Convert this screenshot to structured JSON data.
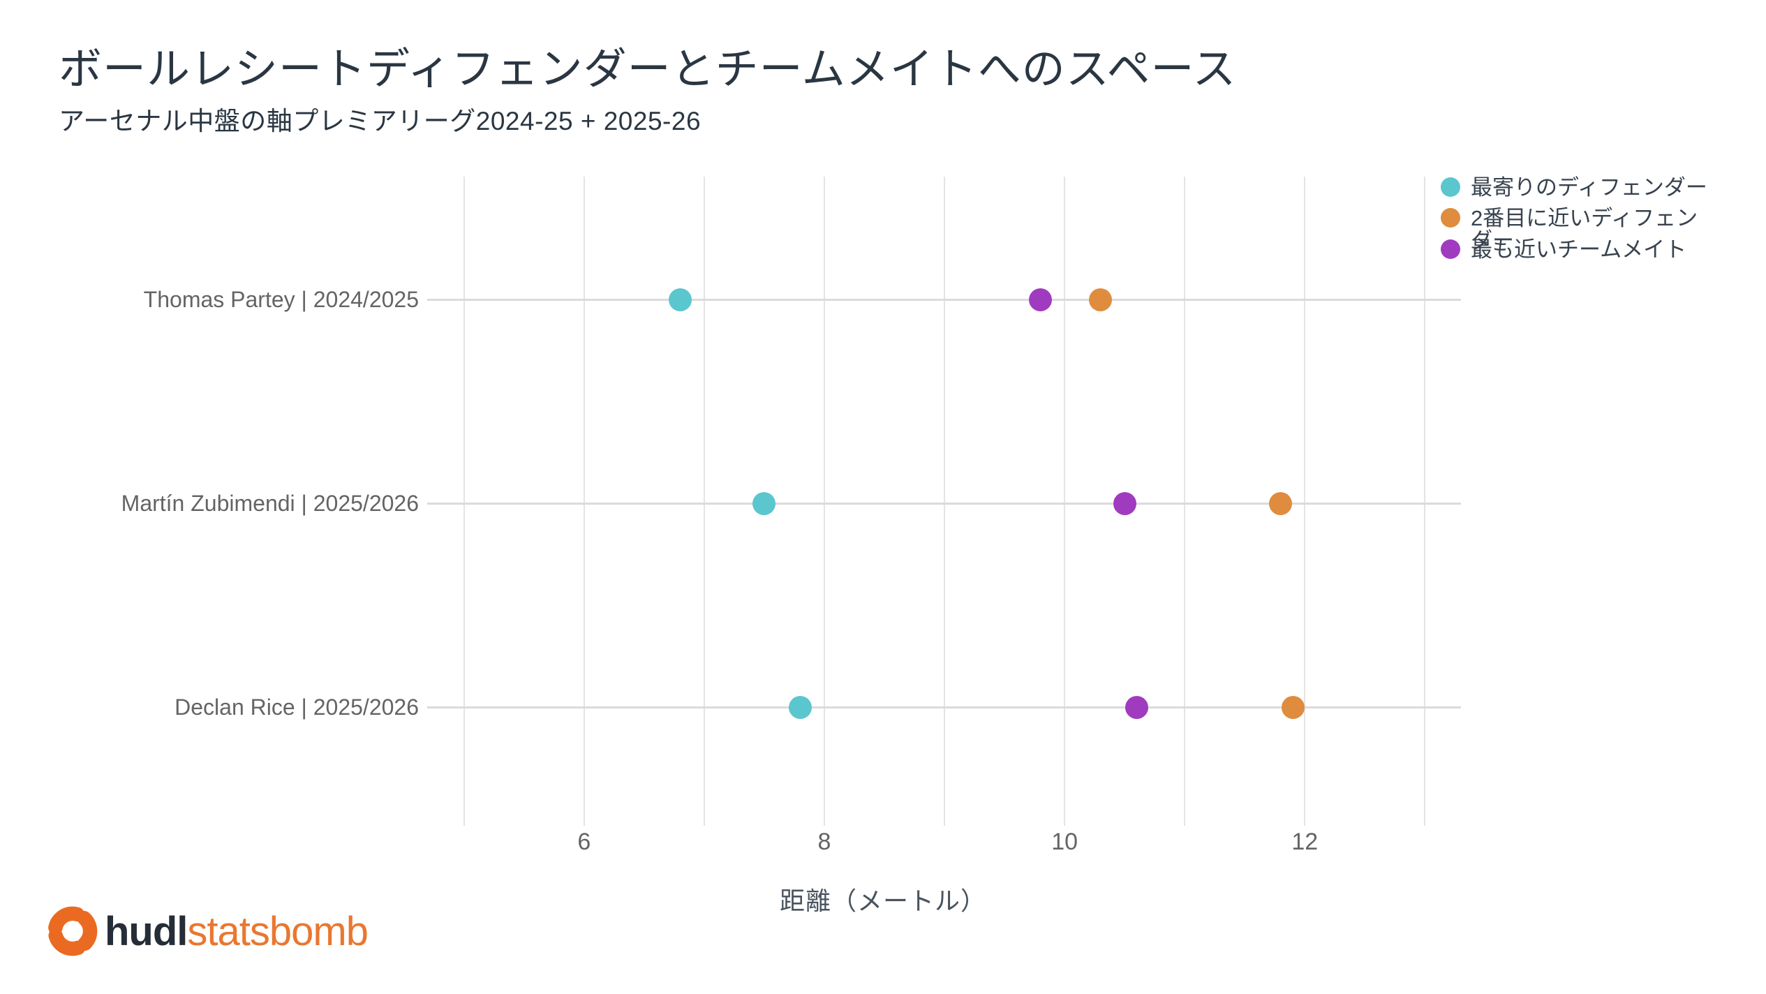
{
  "title": "ボールレシートディフェンダーとチームメイトへのスペース",
  "subtitle": "アーセナル中盤の軸プレミアリーグ2024-25 + 2025-26",
  "legend": {
    "items": [
      {
        "label": "最寄りのディフェンダー",
        "wrap": "",
        "color": "#5BC6CE"
      },
      {
        "label": "2番目に近いディフェン",
        "wrap": "ダー",
        "color": "#DF8C3E"
      },
      {
        "label": "最も近いチームメイト",
        "wrap": "",
        "color": "#A03BC0"
      }
    ]
  },
  "chart_data": {
    "type": "scatter",
    "orientation": "horizontal-dotplot",
    "categories": [
      "Thomas Partey | 2024/2025",
      "Martín Zubimendi | 2025/2026",
      "Declan Rice | 2025/2026"
    ],
    "series": [
      {
        "name": "最寄りのディフェンダー",
        "color": "#5BC6CE",
        "values": [
          6.8,
          7.5,
          7.8
        ]
      },
      {
        "name": "2番目に近いディフェンダー",
        "color": "#DF8C3E",
        "values": [
          10.3,
          11.8,
          11.9
        ]
      },
      {
        "name": "最も近いチームメイト",
        "color": "#A03BC0",
        "values": [
          9.8,
          10.5,
          10.6
        ]
      }
    ],
    "xlabel": "距離（メートル）",
    "xlim": [
      4.74,
      13.3
    ],
    "xticks": [
      6,
      8,
      10,
      12
    ],
    "xgridlines": [
      5,
      6,
      7,
      8,
      9,
      10,
      11,
      12,
      13
    ],
    "grid": true,
    "legend_position": "top-right",
    "marker_diameter_px": 33
  },
  "footer": {
    "hudl": "hudl",
    "statsbomb": "statsbomb"
  },
  "colors": {
    "title_text": "#2A3642",
    "axis_text": "#646464",
    "xlabel_text": "#49535E",
    "gridline": "#E4E4E4",
    "rowline": "#DBDBDB",
    "teal": "#5BC6CE",
    "orange": "#DF8C3E",
    "purple": "#A03BC0",
    "logo_dark": "#252D38",
    "logo_orange": "#E97730"
  }
}
